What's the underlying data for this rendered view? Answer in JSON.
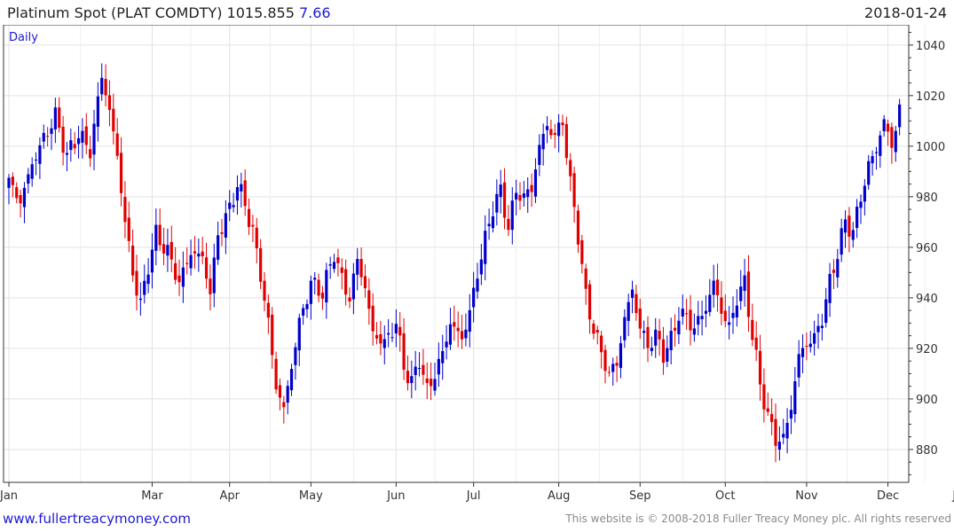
{
  "header": {
    "title": "Platinum Spot (PLAT COMDTY) 1015.855",
    "change": "7.66",
    "date": "2018-01-24"
  },
  "footer": {
    "url": "www.fullertreacymoney.com",
    "copyright": "This website is © 2008-2018 Fuller Treacy Money plc. All rights reserved"
  },
  "chart_data": {
    "type": "candlestick",
    "period_label": "Daily",
    "ylim": [
      867,
      1048
    ],
    "y_ticks": [
      880,
      900,
      920,
      940,
      960,
      980,
      1000,
      1020,
      1040
    ],
    "x_labels": [
      "Jan",
      "Mar",
      "Apr",
      "May",
      "Jun",
      "Jul",
      "Aug",
      "Sep",
      "Oct",
      "Nov",
      "Dec",
      "Jan"
    ],
    "x_label_positions": [
      0,
      37,
      57,
      78,
      100,
      120,
      142,
      163,
      185,
      206,
      227,
      246
    ],
    "grid": true,
    "colors": {
      "up": "#0000cc",
      "down": "#e00000",
      "grid": "#e2e2e2",
      "axis": "#333333"
    },
    "waypoints": [
      [
        0,
        986
      ],
      [
        3,
        978
      ],
      [
        6,
        993
      ],
      [
        9,
        1003
      ],
      [
        12,
        1012
      ],
      [
        15,
        996
      ],
      [
        18,
        1005
      ],
      [
        21,
        998
      ],
      [
        24,
        1028
      ],
      [
        26,
        1014
      ],
      [
        28,
        996
      ],
      [
        30,
        970
      ],
      [
        32,
        950
      ],
      [
        34,
        937
      ],
      [
        36,
        953
      ],
      [
        38,
        965
      ],
      [
        41,
        958
      ],
      [
        44,
        946
      ],
      [
        47,
        958
      ],
      [
        50,
        956
      ],
      [
        52,
        942
      ],
      [
        54,
        965
      ],
      [
        57,
        975
      ],
      [
        59,
        985
      ],
      [
        61,
        977
      ],
      [
        63,
        966
      ],
      [
        65,
        949
      ],
      [
        67,
        930
      ],
      [
        69,
        905
      ],
      [
        71,
        896
      ],
      [
        73,
        913
      ],
      [
        75,
        930
      ],
      [
        78,
        946
      ],
      [
        81,
        942
      ],
      [
        84,
        958
      ],
      [
        86,
        947
      ],
      [
        88,
        940
      ],
      [
        90,
        955
      ],
      [
        92,
        944
      ],
      [
        94,
        926
      ],
      [
        97,
        922
      ],
      [
        100,
        930
      ],
      [
        102,
        913
      ],
      [
        104,
        906
      ],
      [
        106,
        916
      ],
      [
        108,
        903
      ],
      [
        110,
        910
      ],
      [
        112,
        918
      ],
      [
        114,
        930
      ],
      [
        117,
        924
      ],
      [
        119,
        934
      ],
      [
        121,
        950
      ],
      [
        123,
        963
      ],
      [
        125,
        976
      ],
      [
        127,
        982
      ],
      [
        129,
        968
      ],
      [
        131,
        982
      ],
      [
        133,
        980
      ],
      [
        135,
        983
      ],
      [
        137,
        1000
      ],
      [
        139,
        1008
      ],
      [
        141,
        1004
      ],
      [
        143,
        1010
      ],
      [
        145,
        985
      ],
      [
        147,
        965
      ],
      [
        149,
        940
      ],
      [
        151,
        928
      ],
      [
        153,
        918
      ],
      [
        155,
        910
      ],
      [
        157,
        914
      ],
      [
        159,
        932
      ],
      [
        161,
        943
      ],
      [
        163,
        928
      ],
      [
        165,
        921
      ],
      [
        167,
        925
      ],
      [
        169,
        918
      ],
      [
        171,
        923
      ],
      [
        173,
        934
      ],
      [
        175,
        932
      ],
      [
        177,
        928
      ],
      [
        180,
        936
      ],
      [
        182,
        946
      ],
      [
        184,
        935
      ],
      [
        186,
        928
      ],
      [
        188,
        940
      ],
      [
        190,
        946
      ],
      [
        192,
        925
      ],
      [
        194,
        906
      ],
      [
        196,
        893
      ],
      [
        198,
        884
      ],
      [
        200,
        884
      ],
      [
        202,
        897
      ],
      [
        204,
        917
      ],
      [
        206,
        922
      ],
      [
        208,
        924
      ],
      [
        210,
        932
      ],
      [
        212,
        946
      ],
      [
        214,
        958
      ],
      [
        216,
        970
      ],
      [
        218,
        966
      ],
      [
        220,
        980
      ],
      [
        222,
        992
      ],
      [
        224,
        999
      ],
      [
        226,
        1010
      ],
      [
        228,
        1000
      ],
      [
        230,
        1015
      ]
    ]
  }
}
